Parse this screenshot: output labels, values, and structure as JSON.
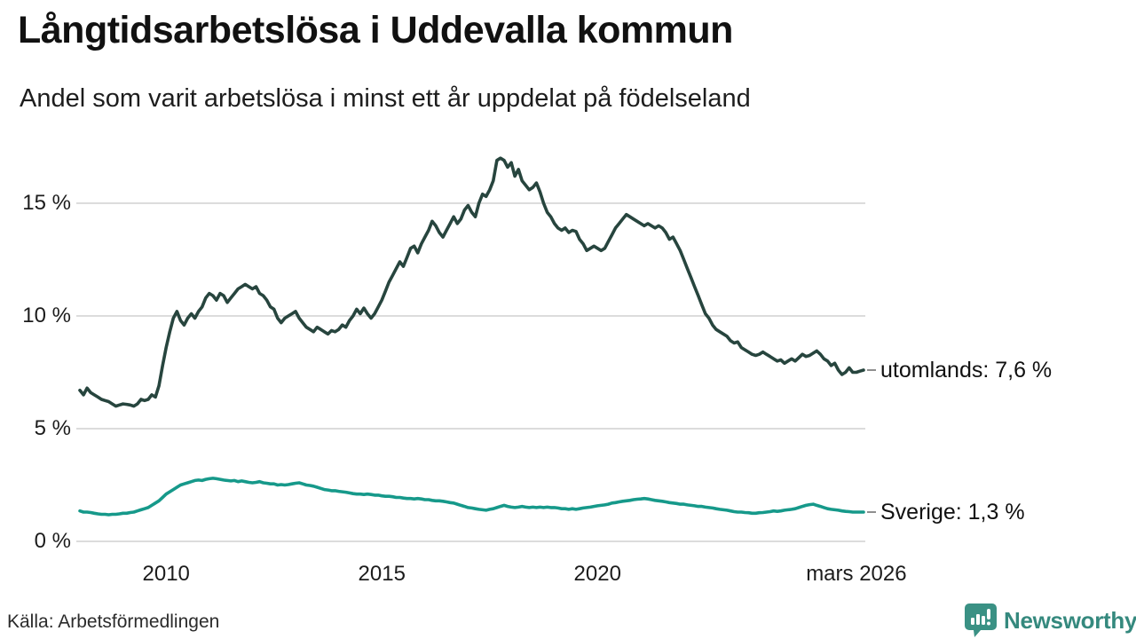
{
  "header": {
    "title": "Långtidsarbetslösa i Uddevalla kommun",
    "subtitle": "Andel som varit arbetslösa i minst ett år uppdelat på födelseland"
  },
  "footer": {
    "source": "Källa: Arbetsförmedlingen",
    "brand": "Newsworthy"
  },
  "colors": {
    "utomlands": "#27453E",
    "sverige": "#16998A",
    "grid": "#DCDCDC",
    "axis_text": "#1C1C1C",
    "label_dash": "#8F8F8F",
    "brand": "#35897E",
    "brand_icon": "#3A9184"
  },
  "chart_data": {
    "type": "line",
    "title": "Långtidsarbetslösa i Uddevalla kommun",
    "subtitle": "Andel som varit arbetslösa i minst ett år uppdelat på födelseland",
    "xlabel": "",
    "ylabel": "",
    "x_domain": [
      2008.0,
      2026.1667
    ],
    "ylim": [
      0,
      17.5
    ],
    "grid": "horizontal",
    "legend_position": "right-end-labels",
    "x_frequency": "monthly",
    "yticks": [
      {
        "label": "0 %",
        "v": 0
      },
      {
        "label": "5 %",
        "v": 5
      },
      {
        "label": "10 %",
        "v": 10
      },
      {
        "label": "15 %",
        "v": 15
      }
    ],
    "xticks": [
      {
        "label": "2010",
        "t": 2010
      },
      {
        "label": "2015",
        "t": 2015
      },
      {
        "label": "2020",
        "t": 2020
      },
      {
        "label": "mars 2026",
        "t": 2026.0
      }
    ],
    "series": [
      {
        "name": "utomlands",
        "end_label": "utomlands: 7,6 %",
        "last_value_text": "7,6 %",
        "color_key": "utomlands",
        "values": [
          6.7,
          6.5,
          6.8,
          6.6,
          6.5,
          6.4,
          6.3,
          6.25,
          6.2,
          6.1,
          6.0,
          6.05,
          6.1,
          6.08,
          6.05,
          6.0,
          6.1,
          6.3,
          6.25,
          6.3,
          6.5,
          6.4,
          6.9,
          7.8,
          8.6,
          9.3,
          9.9,
          10.2,
          9.8,
          9.6,
          9.9,
          10.1,
          9.9,
          10.2,
          10.4,
          10.8,
          11.0,
          10.9,
          10.7,
          11.0,
          10.9,
          10.6,
          10.8,
          11.0,
          11.2,
          11.3,
          11.4,
          11.3,
          11.2,
          11.3,
          11.0,
          10.9,
          10.7,
          10.4,
          10.3,
          9.9,
          9.7,
          9.9,
          10.0,
          10.1,
          10.2,
          9.9,
          9.7,
          9.5,
          9.4,
          9.3,
          9.5,
          9.4,
          9.3,
          9.2,
          9.35,
          9.3,
          9.4,
          9.6,
          9.5,
          9.8,
          10.0,
          10.3,
          10.1,
          10.35,
          10.1,
          9.9,
          10.1,
          10.4,
          10.7,
          11.1,
          11.5,
          11.8,
          12.1,
          12.4,
          12.2,
          12.6,
          13.0,
          13.1,
          12.8,
          13.2,
          13.5,
          13.8,
          14.2,
          14.0,
          13.7,
          13.5,
          13.8,
          14.1,
          14.4,
          14.1,
          14.3,
          14.7,
          14.9,
          14.6,
          14.4,
          15.0,
          15.4,
          15.3,
          15.6,
          16.0,
          16.9,
          17.0,
          16.9,
          16.6,
          16.8,
          16.2,
          16.5,
          16.0,
          15.8,
          15.6,
          15.7,
          15.9,
          15.5,
          15.0,
          14.6,
          14.4,
          14.1,
          13.9,
          13.8,
          13.9,
          13.7,
          13.8,
          13.75,
          13.4,
          13.2,
          12.9,
          13.0,
          13.1,
          13.0,
          12.9,
          13.0,
          13.3,
          13.6,
          13.9,
          14.1,
          14.3,
          14.5,
          14.4,
          14.3,
          14.2,
          14.1,
          14.0,
          14.1,
          14.0,
          13.9,
          14.0,
          13.9,
          13.7,
          13.4,
          13.5,
          13.2,
          12.9,
          12.5,
          12.1,
          11.7,
          11.3,
          10.9,
          10.5,
          10.1,
          9.9,
          9.6,
          9.4,
          9.3,
          9.2,
          9.1,
          8.9,
          8.8,
          8.85,
          8.6,
          8.5,
          8.4,
          8.3,
          8.25,
          8.3,
          8.4,
          8.3,
          8.2,
          8.1,
          8.0,
          8.05,
          7.9,
          8.0,
          8.1,
          8.0,
          8.15,
          8.3,
          8.2,
          8.25,
          8.35,
          8.45,
          8.3,
          8.1,
          8.0,
          7.8,
          7.9,
          7.6,
          7.4,
          7.5,
          7.7,
          7.5,
          7.5,
          7.55,
          7.6
        ]
      },
      {
        "name": "Sverige",
        "end_label": "Sverige: 1,3 %",
        "last_value_text": "1,3 %",
        "color_key": "sverige",
        "values": [
          1.35,
          1.3,
          1.3,
          1.28,
          1.25,
          1.22,
          1.2,
          1.2,
          1.18,
          1.2,
          1.2,
          1.22,
          1.25,
          1.25,
          1.28,
          1.3,
          1.35,
          1.4,
          1.45,
          1.5,
          1.6,
          1.7,
          1.8,
          1.95,
          2.1,
          2.2,
          2.3,
          2.4,
          2.5,
          2.55,
          2.6,
          2.65,
          2.7,
          2.72,
          2.7,
          2.75,
          2.78,
          2.8,
          2.78,
          2.75,
          2.72,
          2.7,
          2.68,
          2.7,
          2.65,
          2.68,
          2.65,
          2.62,
          2.6,
          2.62,
          2.65,
          2.6,
          2.58,
          2.55,
          2.55,
          2.5,
          2.52,
          2.5,
          2.52,
          2.55,
          2.58,
          2.6,
          2.55,
          2.5,
          2.48,
          2.45,
          2.4,
          2.35,
          2.3,
          2.28,
          2.25,
          2.25,
          2.22,
          2.2,
          2.18,
          2.15,
          2.12,
          2.1,
          2.1,
          2.08,
          2.1,
          2.08,
          2.05,
          2.05,
          2.02,
          2.0,
          2.0,
          1.98,
          1.95,
          1.95,
          1.92,
          1.9,
          1.9,
          1.88,
          1.9,
          1.88,
          1.85,
          1.85,
          1.82,
          1.8,
          1.8,
          1.78,
          1.75,
          1.72,
          1.7,
          1.65,
          1.6,
          1.55,
          1.5,
          1.48,
          1.45,
          1.42,
          1.4,
          1.38,
          1.42,
          1.45,
          1.5,
          1.55,
          1.6,
          1.55,
          1.52,
          1.5,
          1.52,
          1.55,
          1.52,
          1.5,
          1.52,
          1.5,
          1.52,
          1.5,
          1.52,
          1.5,
          1.5,
          1.48,
          1.45,
          1.45,
          1.42,
          1.45,
          1.42,
          1.45,
          1.48,
          1.5,
          1.52,
          1.55,
          1.58,
          1.6,
          1.62,
          1.65,
          1.7,
          1.72,
          1.75,
          1.78,
          1.8,
          1.82,
          1.85,
          1.87,
          1.88,
          1.9,
          1.88,
          1.85,
          1.82,
          1.8,
          1.78,
          1.75,
          1.72,
          1.7,
          1.68,
          1.65,
          1.65,
          1.62,
          1.6,
          1.58,
          1.55,
          1.55,
          1.52,
          1.5,
          1.48,
          1.45,
          1.42,
          1.4,
          1.38,
          1.35,
          1.32,
          1.3,
          1.3,
          1.28,
          1.27,
          1.25,
          1.25,
          1.27,
          1.28,
          1.3,
          1.32,
          1.35,
          1.33,
          1.35,
          1.38,
          1.4,
          1.42,
          1.45,
          1.5,
          1.55,
          1.6,
          1.63,
          1.65,
          1.6,
          1.55,
          1.5,
          1.45,
          1.42,
          1.4,
          1.38,
          1.35,
          1.33,
          1.32,
          1.3,
          1.3,
          1.3,
          1.3
        ]
      }
    ]
  }
}
